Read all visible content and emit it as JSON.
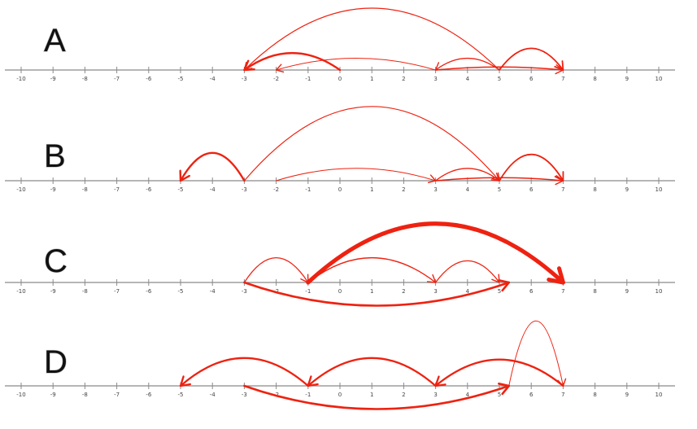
{
  "ticks": [
    "-10",
    "-9",
    "-8",
    "-7",
    "-6",
    "-5",
    "-4",
    "-3",
    "-2",
    "-1",
    "0",
    "1",
    "2",
    "3",
    "4",
    "5",
    "6",
    "7",
    "8",
    "9",
    "10"
  ],
  "panels": [
    {
      "label": "A",
      "jumps": [
        {
          "from": 5,
          "to": -3,
          "peak": 2.0,
          "weight": 1.2
        },
        {
          "from": 0,
          "to": -3,
          "peak": 0.55,
          "weight": 2.4
        },
        {
          "from": 3,
          "to": -2,
          "peak": 0.38,
          "weight": 1.0
        },
        {
          "from": 5,
          "to": 3,
          "peak": 0.38,
          "weight": 1.3
        },
        {
          "from": 5,
          "to": 7,
          "peak": 0.7,
          "weight": 1.8
        },
        {
          "from": 3,
          "to": 7,
          "peak": 0.1,
          "weight": 1.5
        }
      ]
    },
    {
      "label": "B",
      "jumps": [
        {
          "from": -3,
          "to": 5,
          "peak": 2.4,
          "weight": 1.2
        },
        {
          "from": -3,
          "to": -5,
          "peak": 0.9,
          "weight": 2.4
        },
        {
          "from": -2,
          "to": 3,
          "peak": 0.4,
          "weight": 1.0
        },
        {
          "from": 3,
          "to": 5,
          "peak": 0.4,
          "weight": 1.3
        },
        {
          "from": 5,
          "to": 7,
          "peak": 0.85,
          "weight": 1.8
        },
        {
          "from": 3,
          "to": 7,
          "peak": 0.1,
          "weight": 1.5
        }
      ]
    },
    {
      "label": "C",
      "jumps": [
        {
          "from": -1,
          "to": 7,
          "peak": 1.9,
          "weight": 5.0
        },
        {
          "from": -3,
          "to": -1,
          "peak": 0.8,
          "weight": 1.3
        },
        {
          "from": -1,
          "to": 3,
          "peak": 0.8,
          "weight": 1.4
        },
        {
          "from": 3,
          "to": 5,
          "peak": 0.7,
          "weight": 1.3
        },
        {
          "from": -3,
          "to": 5.3,
          "peak": -0.75,
          "weight": 2.6
        }
      ]
    },
    {
      "label": "D",
      "jumps": [
        {
          "from": -1,
          "to": -5,
          "peak": 0.9,
          "weight": 2.3
        },
        {
          "from": 3,
          "to": -1,
          "peak": 0.9,
          "weight": 2.3
        },
        {
          "from": 7,
          "to": 3,
          "peak": 0.85,
          "weight": 2.3
        },
        {
          "from": 5.3,
          "to": 7,
          "peak": 2.1,
          "weight": 1.0
        },
        {
          "from": -3,
          "to": 5.3,
          "peak": -0.75,
          "weight": 2.6
        }
      ]
    }
  ]
}
